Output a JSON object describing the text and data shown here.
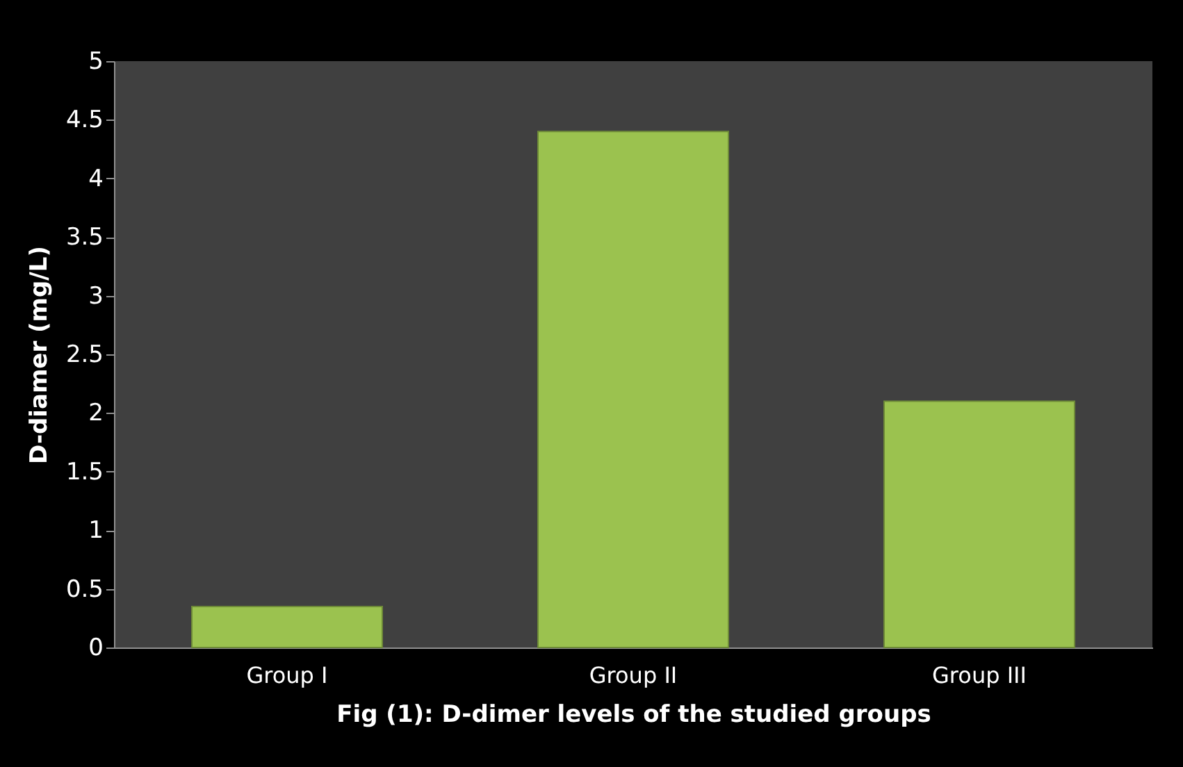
{
  "chart_data": {
    "type": "bar",
    "xlabel": "Fig (1): D-dimer levels of the studied groups",
    "ylabel": "D-diamer (mg/L)",
    "categories": [
      "Group I",
      "Group II",
      "Group III"
    ],
    "values": [
      0.35,
      4.4,
      2.1
    ],
    "color": "#9bc24f",
    "ylim": [
      0,
      5
    ],
    "yticks": [
      0,
      0.5,
      1,
      1.5,
      2,
      2.5,
      3,
      3.5,
      4,
      4.5,
      5
    ],
    "grid": false
  }
}
